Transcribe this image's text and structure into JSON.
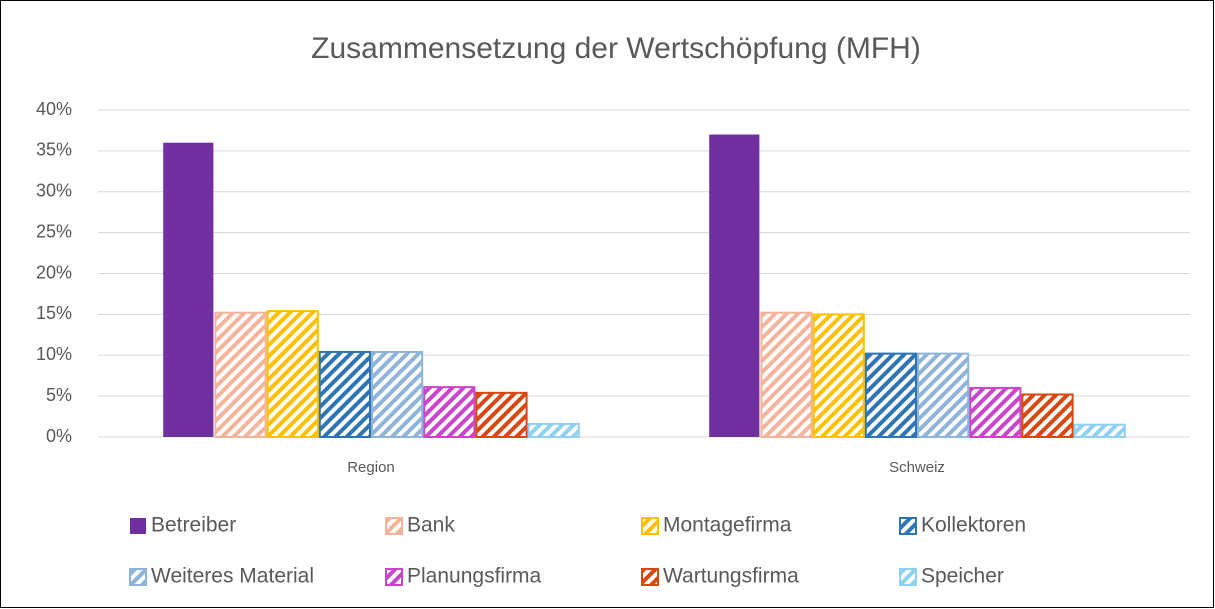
{
  "chart_data": {
    "type": "bar",
    "title": "Zusammensetzung der Wertschöpfung (MFH)",
    "categories": [
      "Region",
      "Schweiz"
    ],
    "series": [
      {
        "name": "Betreiber",
        "color": "#7030a0",
        "hatch": false,
        "values": [
          36,
          37
        ]
      },
      {
        "name": "Bank",
        "color": "#f4b49c",
        "hatch": true,
        "values": [
          15.2,
          15.2
        ]
      },
      {
        "name": "Montagefirma",
        "color": "#ffc000",
        "hatch": true,
        "values": [
          15.4,
          15.0
        ]
      },
      {
        "name": "Kollektoren",
        "color": "#2e75b6",
        "hatch": true,
        "values": [
          10.4,
          10.2
        ]
      },
      {
        "name": "Weiteres Material",
        "color": "#8fb4d9",
        "hatch": true,
        "values": [
          10.4,
          10.2
        ]
      },
      {
        "name": "Planungsfirma",
        "color": "#cc44cc",
        "hatch": true,
        "values": [
          6.1,
          6.0
        ]
      },
      {
        "name": "Wartungsfirma",
        "color": "#d9480f",
        "hatch": true,
        "values": [
          5.4,
          5.2
        ]
      },
      {
        "name": "Speicher",
        "color": "#8fd0f5",
        "hatch": true,
        "values": [
          1.6,
          1.5
        ]
      }
    ],
    "ylim": [
      0,
      40
    ],
    "yticks": [
      {
        "value": 0,
        "label": "0%"
      },
      {
        "value": 5,
        "label": "5%"
      },
      {
        "value": 10,
        "label": "10%"
      },
      {
        "value": 15,
        "label": "15%"
      },
      {
        "value": 20,
        "label": "20%"
      },
      {
        "value": 25,
        "label": "25%"
      },
      {
        "value": 30,
        "label": "30%"
      },
      {
        "value": 35,
        "label": "35%"
      },
      {
        "value": 40,
        "label": "40%"
      }
    ],
    "grid": true,
    "legend": "bottom"
  }
}
